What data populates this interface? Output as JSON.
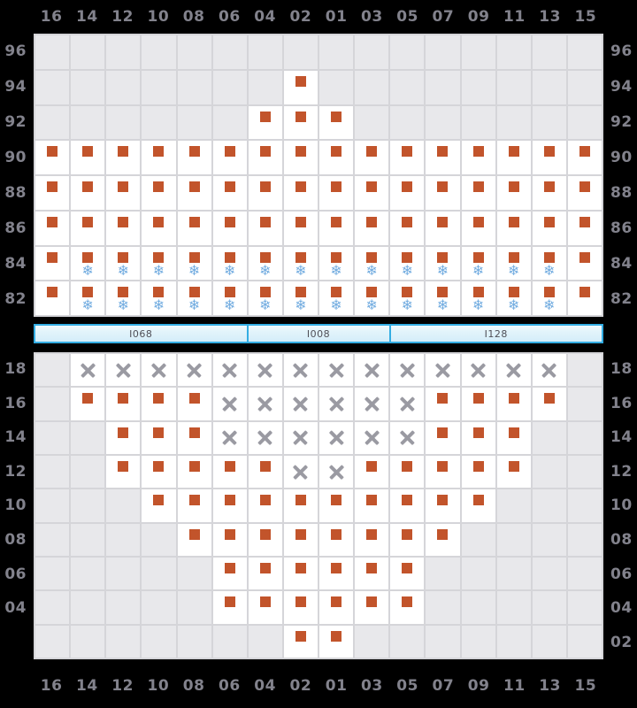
{
  "columns": [
    "16",
    "14",
    "12",
    "10",
    "08",
    "06",
    "04",
    "02",
    "01",
    "03",
    "05",
    "07",
    "09",
    "11",
    "13",
    "15"
  ],
  "upper_grid": {
    "row_labels_left": [
      "96",
      "94",
      "92",
      "90",
      "88",
      "86",
      "84",
      "82"
    ],
    "row_labels_right": [
      "96",
      "94",
      "92",
      "90",
      "88",
      "86",
      "84",
      "82"
    ],
    "rows": [
      {
        "label": "96",
        "cells": [
          "e",
          "e",
          "e",
          "e",
          "e",
          "e",
          "e",
          "e",
          "e",
          "e",
          "e",
          "e",
          "e",
          "e",
          "e",
          "e"
        ]
      },
      {
        "label": "94",
        "cells": [
          "e",
          "e",
          "e",
          "e",
          "e",
          "e",
          "e",
          "s",
          "e",
          "e",
          "e",
          "e",
          "e",
          "e",
          "e",
          "e"
        ]
      },
      {
        "label": "92",
        "cells": [
          "e",
          "e",
          "e",
          "e",
          "e",
          "e",
          "s",
          "s",
          "s",
          "e",
          "e",
          "e",
          "e",
          "e",
          "e",
          "e"
        ]
      },
      {
        "label": "90",
        "cells": [
          "s",
          "s",
          "s",
          "s",
          "s",
          "s",
          "s",
          "s",
          "s",
          "s",
          "s",
          "s",
          "s",
          "s",
          "s",
          "s"
        ]
      },
      {
        "label": "88",
        "cells": [
          "s",
          "s",
          "s",
          "s",
          "s",
          "s",
          "s",
          "s",
          "s",
          "s",
          "s",
          "s",
          "s",
          "s",
          "s",
          "s"
        ]
      },
      {
        "label": "86",
        "cells": [
          "s",
          "s",
          "s",
          "s",
          "s",
          "s",
          "s",
          "s",
          "s",
          "s",
          "s",
          "s",
          "s",
          "s",
          "s",
          "s"
        ]
      },
      {
        "label": "84",
        "cells": [
          "s",
          "sf",
          "sf",
          "sf",
          "sf",
          "sf",
          "sf",
          "sf",
          "sf",
          "sf",
          "sf",
          "sf",
          "sf",
          "sf",
          "sf",
          "s"
        ]
      },
      {
        "label": "82",
        "cells": [
          "s",
          "sf",
          "sf",
          "sf",
          "sf",
          "sf",
          "sf",
          "sf",
          "sf",
          "sf",
          "sf",
          "sf",
          "sf",
          "sf",
          "sf",
          "s"
        ]
      }
    ]
  },
  "procedure_bar": {
    "segments": [
      {
        "label": "I068",
        "cols": 6
      },
      {
        "label": "I008",
        "cols": 4
      },
      {
        "label": "I128",
        "cols": 6
      }
    ]
  },
  "lower_grid": {
    "row_labels_left": [
      "18",
      "16",
      "14",
      "12",
      "10",
      "08",
      "06",
      "04",
      ""
    ],
    "row_labels_right": [
      "18",
      "16",
      "14",
      "12",
      "10",
      "08",
      "06",
      "04",
      "02"
    ],
    "rows": [
      {
        "label": "18",
        "cells": [
          "e",
          "x",
          "x",
          "x",
          "x",
          "x",
          "x",
          "x",
          "x",
          "x",
          "x",
          "x",
          "x",
          "x",
          "x",
          "e"
        ]
      },
      {
        "label": "16",
        "cells": [
          "e",
          "s",
          "s",
          "s",
          "s",
          "x",
          "x",
          "x",
          "x",
          "x",
          "x",
          "s",
          "s",
          "s",
          "s",
          "e"
        ]
      },
      {
        "label": "14",
        "cells": [
          "e",
          "e",
          "s",
          "s",
          "s",
          "x",
          "x",
          "x",
          "x",
          "x",
          "x",
          "s",
          "s",
          "s",
          "e",
          "e"
        ]
      },
      {
        "label": "12",
        "cells": [
          "e",
          "e",
          "s",
          "s",
          "s",
          "s",
          "s",
          "x",
          "x",
          "s",
          "s",
          "s",
          "s",
          "s",
          "e",
          "e"
        ]
      },
      {
        "label": "10",
        "cells": [
          "e",
          "e",
          "e",
          "s",
          "s",
          "s",
          "s",
          "s",
          "s",
          "s",
          "s",
          "s",
          "s",
          "e",
          "e",
          "e"
        ]
      },
      {
        "label": "08",
        "cells": [
          "e",
          "e",
          "e",
          "e",
          "s",
          "s",
          "s",
          "s",
          "s",
          "s",
          "s",
          "s",
          "e",
          "e",
          "e",
          "e"
        ]
      },
      {
        "label": "06",
        "cells": [
          "e",
          "e",
          "e",
          "e",
          "e",
          "s",
          "s",
          "s",
          "s",
          "s",
          "s",
          "e",
          "e",
          "e",
          "e",
          "e"
        ]
      },
      {
        "label": "04",
        "cells": [
          "e",
          "e",
          "e",
          "e",
          "e",
          "s",
          "s",
          "s",
          "s",
          "s",
          "s",
          "e",
          "e",
          "e",
          "e",
          "e"
        ]
      },
      {
        "label": "02",
        "cells": [
          "e",
          "e",
          "e",
          "e",
          "e",
          "e",
          "e",
          "s",
          "s",
          "e",
          "e",
          "e",
          "e",
          "e",
          "e",
          "e"
        ]
      }
    ]
  },
  "icons": {
    "square": "filling-marker",
    "snowflake_glyph": "❄",
    "x_mark": "missing-marker"
  },
  "colors": {
    "background": "#000000",
    "marker_orange": "#C2542B",
    "snowflake_blue": "#72ACE0",
    "x_gray": "#9A9AA2",
    "axis_label_gray": "#82828C",
    "cell_gray": "#E8E8EB",
    "cell_white": "#FFFFFF",
    "grid_line": "#D5D5D9",
    "bar_border": "#33ADE3",
    "bar_fill": "#D4EDF9"
  }
}
